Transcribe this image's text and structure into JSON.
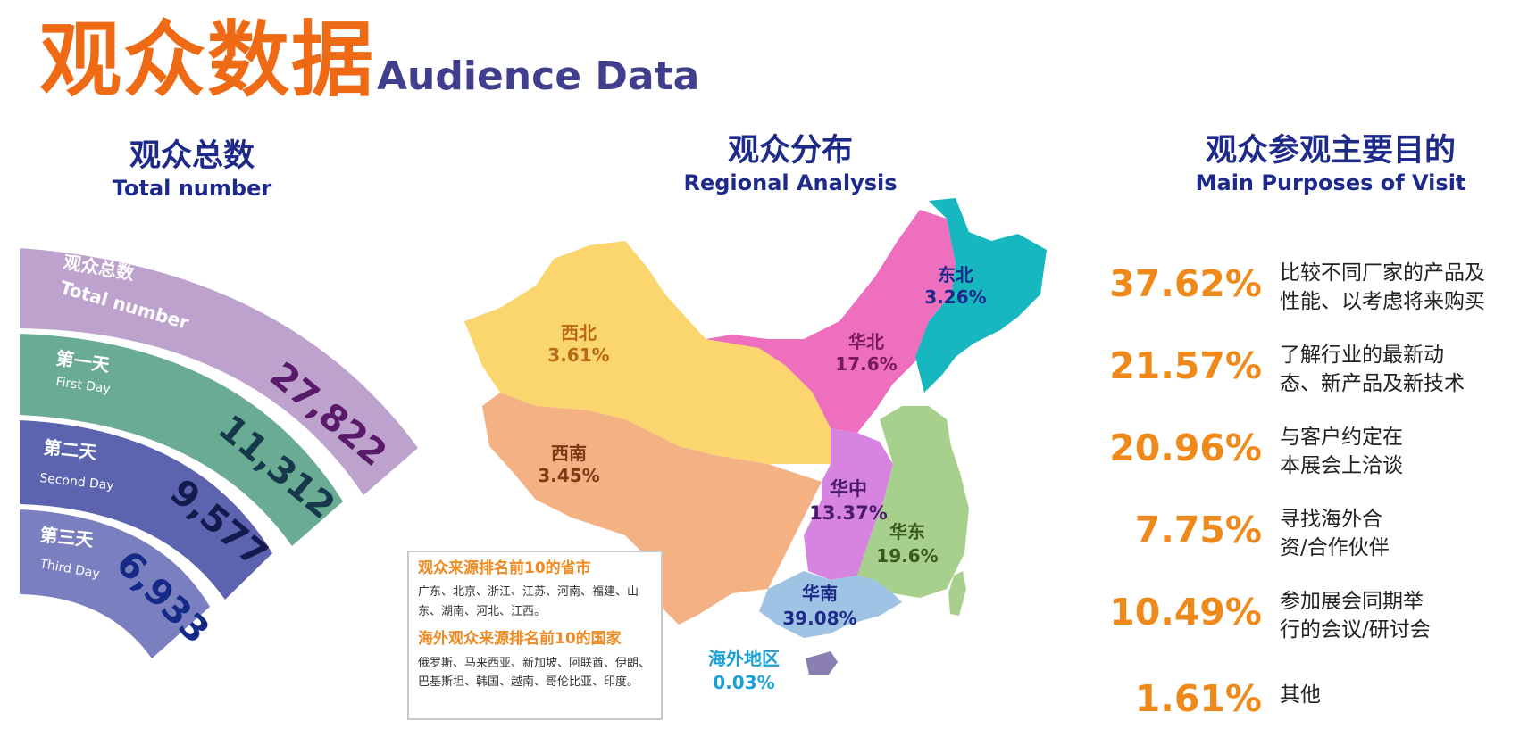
{
  "header": {
    "title_cn": "观众数据",
    "title_en": "Audience Data"
  },
  "total_section": {
    "title_cn": "观众总数",
    "title_en": "Total number",
    "bands": [
      {
        "label_cn": "观众总数",
        "label_en": "Total number",
        "value": "27,822",
        "color": "#bda2cd",
        "value_color": "#5a1a6a"
      },
      {
        "label_cn": "第一天",
        "label_en": "First Day",
        "value": "11,312",
        "color": "#6aab93",
        "value_color": "#15394a"
      },
      {
        "label_cn": "第二天",
        "label_en": "Second Day",
        "value": "9,577",
        "color": "#5c64b0",
        "value_color": "#121a4e"
      },
      {
        "label_cn": "第三天",
        "label_en": "Third Day",
        "value": "6,933",
        "color": "#7a7fc0",
        "value_color": "#152a86"
      }
    ]
  },
  "region_section": {
    "title_cn": "观众分布",
    "title_en": "Regional Analysis",
    "regions": [
      {
        "name": "东北",
        "pct": "3.26%",
        "color": "#17b7c0",
        "text_color": "#1e2a8a"
      },
      {
        "name": "华北",
        "pct": "17.6%",
        "color": "#ee6fbd",
        "text_color": "#7a1a5a"
      },
      {
        "name": "西北",
        "pct": "3.61%",
        "color": "#fbd56e",
        "text_color": "#b8681a"
      },
      {
        "name": "西南",
        "pct": "3.45%",
        "color": "#f4b183",
        "text_color": "#7a3a14"
      },
      {
        "name": "华中",
        "pct": "13.37%",
        "color": "#d684e0",
        "text_color": "#4a1a6a"
      },
      {
        "name": "华东",
        "pct": "19.6%",
        "color": "#a8d08d",
        "text_color": "#3a5a1a"
      },
      {
        "name": "华南",
        "pct": "39.08%",
        "color": "#9fc3e4",
        "text_color": "#1e2a8a"
      },
      {
        "name": "海外地区",
        "pct": "0.03%",
        "color": "#8a7fb0",
        "text_color": "#1aa0d8"
      }
    ],
    "info_box": {
      "provinces_title": "观众来源排名前10的省市",
      "provinces_text": "广东、北京、浙江、江苏、河南、福建、山东、湖南、河北、江西。",
      "countries_title": "海外观众来源排名前10的国家",
      "countries_text": "俄罗斯、马来西亚、新加坡、阿联酋、伊朗、巴基斯坦、韩国、越南、哥伦比亚、印度。"
    }
  },
  "purpose_section": {
    "title_cn": "观众参观主要目的",
    "title_en": "Main Purposes of Visit",
    "items": [
      {
        "pct": "37.62%",
        "line1": "比较不同厂家的产品及",
        "line2": "性能、以考虑将来购买"
      },
      {
        "pct": "21.57%",
        "line1": "了解行业的最新动",
        "line2": "态、新产品及新技术"
      },
      {
        "pct": "20.96%",
        "line1": "与客户约定在",
        "line2": "本展会上洽谈"
      },
      {
        "pct": "7.75%",
        "line1": "寻找海外合",
        "line2": "资/合作伙伴"
      },
      {
        "pct": "10.49%",
        "line1": "参加展会同期举",
        "line2": "行的会议/研讨会"
      },
      {
        "pct": "1.61%",
        "line1": "其他",
        "line2": ""
      }
    ]
  }
}
